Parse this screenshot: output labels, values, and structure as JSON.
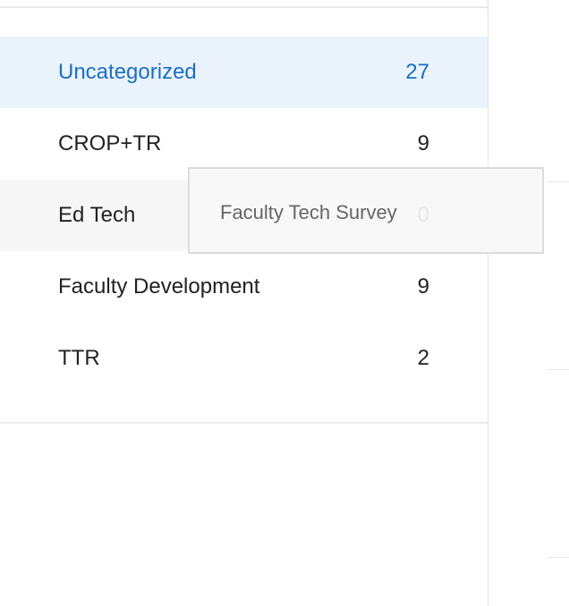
{
  "folders": [
    {
      "name": "Uncategorized",
      "count": "27"
    },
    {
      "name": "CROP+TR",
      "count": "9"
    },
    {
      "name": "Ed Tech",
      "count": "0"
    },
    {
      "name": "Faculty Development",
      "count": "9"
    },
    {
      "name": "TTR",
      "count": "2"
    }
  ],
  "drag_tooltip": {
    "label": "Faculty Tech Survey"
  }
}
